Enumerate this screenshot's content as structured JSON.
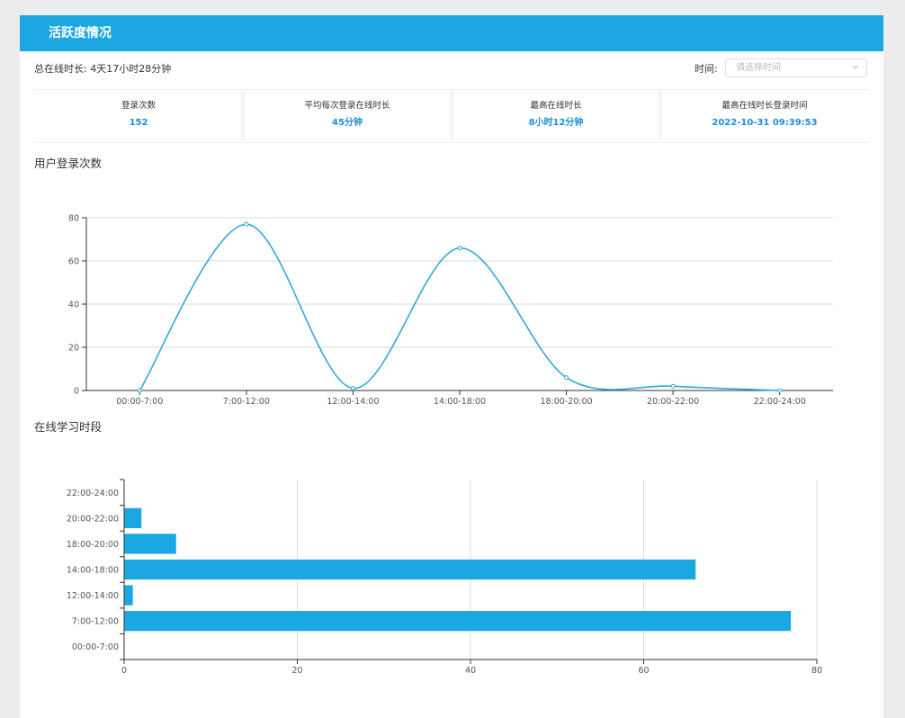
{
  "header": {
    "title": "活跃度情况"
  },
  "summary": {
    "total_online": "总在线时长: 4天17小时28分钟"
  },
  "time_filter": {
    "label": "时间:",
    "placeholder": "请选择时间"
  },
  "stats": [
    {
      "label": "登录次数",
      "value": "152"
    },
    {
      "label": "平均每次登录在线时长",
      "value": "45分钟"
    },
    {
      "label": "最高在线时长",
      "value": "8小时12分钟"
    },
    {
      "label": "最高在线时长登录时间",
      "value": "2022-10-31 09:39:53"
    }
  ],
  "colors": {
    "accent": "#1aa7e2",
    "line": "#2fa9df",
    "bar": "#1aa7e2",
    "value_text": "#1e8fd6"
  },
  "chart_data": [
    {
      "type": "line",
      "smooth": true,
      "title": "用户登录次数",
      "categories": [
        "00:00-7:00",
        "7:00-12:00",
        "12:00-14:00",
        "14:00-18:00",
        "18:00-20:00",
        "20:00-22:00",
        "22:00-24:00"
      ],
      "values": [
        0,
        77,
        1,
        66,
        6,
        2,
        0
      ],
      "ylim": [
        0,
        80
      ],
      "yticks": [
        0,
        20,
        40,
        60,
        80
      ],
      "grid": true
    },
    {
      "type": "bar",
      "orientation": "horizontal",
      "title": "在线学习时段",
      "categories": [
        "00:00-7:00",
        "7:00-12:00",
        "12:00-14:00",
        "14:00-18:00",
        "18:00-20:00",
        "20:00-22:00",
        "22:00-24:00"
      ],
      "values": [
        0,
        77,
        1,
        66,
        6,
        2,
        0
      ],
      "xlim": [
        0,
        80
      ],
      "xticks": [
        0,
        20,
        40,
        60,
        80
      ],
      "grid": true
    }
  ]
}
